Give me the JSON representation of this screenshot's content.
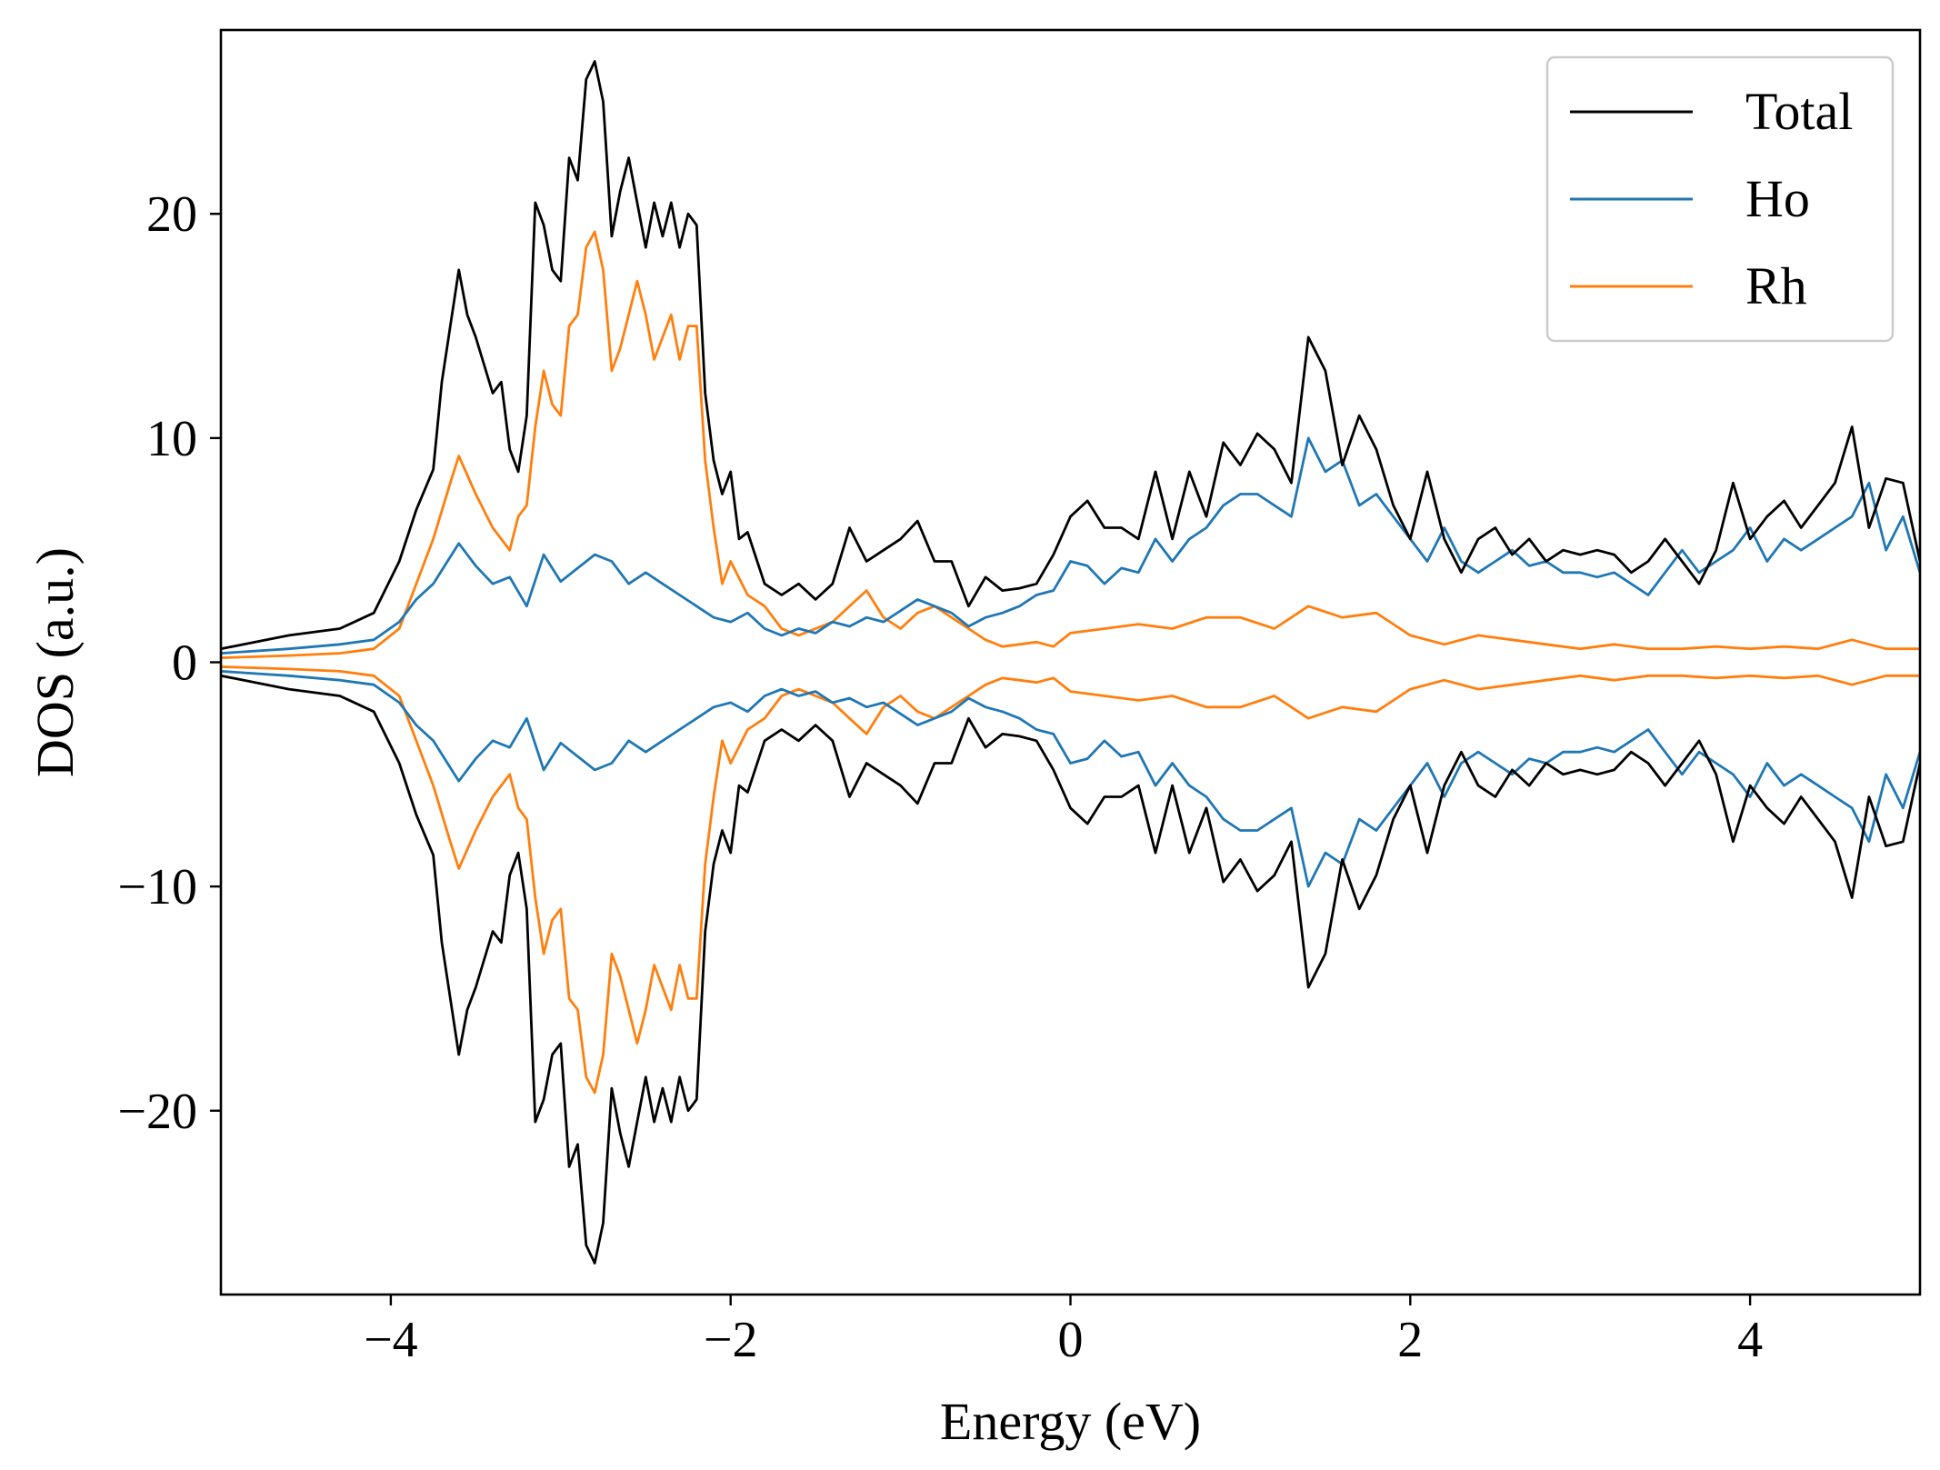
{
  "chart_data": {
    "type": "line",
    "title": "",
    "xlabel": "Energy (eV)",
    "ylabel": "DOS (a.u.)",
    "xlim": [
      -5,
      5
    ],
    "ylim": [
      -28.2,
      28.2
    ],
    "x_ticks": [
      -4,
      -2,
      0,
      2,
      4
    ],
    "x_tick_labels": [
      "−4",
      "−2",
      "0",
      "2",
      "4"
    ],
    "y_ticks": [
      -20,
      -10,
      0,
      10,
      20
    ],
    "y_tick_labels": [
      "−20",
      "−10",
      "0",
      "10",
      "20"
    ],
    "grid": false,
    "legend_position": "top-right",
    "mirrored_spin_down": true,
    "series": [
      {
        "name": "Total",
        "color": "#000000",
        "x": [
          -5.0,
          -4.6,
          -4.3,
          -4.1,
          -3.95,
          -3.85,
          -3.75,
          -3.7,
          -3.6,
          -3.55,
          -3.5,
          -3.4,
          -3.35,
          -3.3,
          -3.25,
          -3.2,
          -3.15,
          -3.1,
          -3.05,
          -3.0,
          -2.95,
          -2.9,
          -2.85,
          -2.8,
          -2.75,
          -2.7,
          -2.65,
          -2.6,
          -2.55,
          -2.5,
          -2.45,
          -2.4,
          -2.35,
          -2.3,
          -2.25,
          -2.2,
          -2.15,
          -2.1,
          -2.05,
          -2.0,
          -1.95,
          -1.9,
          -1.8,
          -1.7,
          -1.6,
          -1.5,
          -1.4,
          -1.3,
          -1.2,
          -1.1,
          -1.0,
          -0.9,
          -0.8,
          -0.7,
          -0.6,
          -0.5,
          -0.4,
          -0.3,
          -0.2,
          -0.1,
          0.0,
          0.1,
          0.2,
          0.3,
          0.4,
          0.5,
          0.6,
          0.7,
          0.8,
          0.9,
          1.0,
          1.1,
          1.2,
          1.3,
          1.4,
          1.5,
          1.6,
          1.7,
          1.8,
          1.9,
          2.0,
          2.1,
          2.2,
          2.3,
          2.4,
          2.5,
          2.6,
          2.7,
          2.8,
          2.9,
          3.0,
          3.1,
          3.2,
          3.3,
          3.4,
          3.5,
          3.6,
          3.7,
          3.8,
          3.9,
          4.0,
          4.1,
          4.2,
          4.3,
          4.4,
          4.5,
          4.6,
          4.7,
          4.8,
          4.9,
          5.0
        ],
        "y": [
          0.6,
          1.2,
          1.5,
          2.2,
          4.5,
          6.8,
          8.6,
          12.5,
          17.5,
          15.5,
          14.5,
          12.0,
          12.5,
          9.5,
          8.5,
          11.0,
          20.5,
          19.5,
          17.5,
          17.0,
          22.5,
          21.5,
          26.0,
          26.8,
          25.0,
          19.0,
          21.0,
          22.5,
          20.5,
          18.5,
          20.5,
          19.0,
          20.5,
          18.5,
          20.0,
          19.5,
          12.0,
          9.0,
          7.5,
          8.5,
          5.5,
          5.8,
          3.5,
          3.0,
          3.5,
          2.8,
          3.5,
          6.0,
          4.5,
          5.0,
          5.5,
          6.3,
          4.5,
          4.5,
          2.5,
          3.8,
          3.2,
          3.3,
          3.5,
          4.8,
          6.5,
          7.2,
          6.0,
          6.0,
          5.5,
          8.5,
          5.5,
          8.5,
          6.5,
          9.8,
          8.8,
          10.2,
          9.5,
          8.0,
          14.5,
          13.0,
          8.8,
          11.0,
          9.5,
          7.0,
          5.5,
          8.5,
          5.5,
          4.0,
          5.5,
          6.0,
          4.8,
          5.5,
          4.5,
          5.0,
          4.8,
          5.0,
          4.8,
          4.0,
          4.5,
          5.5,
          4.5,
          3.5,
          5.0,
          8.0,
          5.5,
          6.5,
          7.2,
          6.0,
          7.0,
          8.0,
          10.5,
          6.0,
          8.2,
          8.0,
          4.5
        ]
      },
      {
        "name": "Ho",
        "color": "#1f77b4",
        "x": [
          -5.0,
          -4.6,
          -4.3,
          -4.1,
          -3.95,
          -3.85,
          -3.75,
          -3.6,
          -3.5,
          -3.4,
          -3.3,
          -3.2,
          -3.1,
          -3.0,
          -2.9,
          -2.8,
          -2.7,
          -2.6,
          -2.5,
          -2.4,
          -2.3,
          -2.2,
          -2.1,
          -2.0,
          -1.9,
          -1.8,
          -1.7,
          -1.6,
          -1.5,
          -1.4,
          -1.3,
          -1.2,
          -1.1,
          -1.0,
          -0.9,
          -0.8,
          -0.7,
          -0.6,
          -0.5,
          -0.4,
          -0.3,
          -0.2,
          -0.1,
          0.0,
          0.1,
          0.2,
          0.3,
          0.4,
          0.5,
          0.6,
          0.7,
          0.8,
          0.9,
          1.0,
          1.1,
          1.2,
          1.3,
          1.4,
          1.5,
          1.6,
          1.7,
          1.8,
          1.9,
          2.0,
          2.1,
          2.2,
          2.3,
          2.4,
          2.5,
          2.6,
          2.7,
          2.8,
          2.9,
          3.0,
          3.1,
          3.2,
          3.3,
          3.4,
          3.5,
          3.6,
          3.7,
          3.8,
          3.9,
          4.0,
          4.1,
          4.2,
          4.3,
          4.4,
          4.5,
          4.6,
          4.7,
          4.8,
          4.9,
          5.0
        ],
        "y": [
          0.4,
          0.6,
          0.8,
          1.0,
          1.8,
          2.8,
          3.5,
          5.3,
          4.3,
          3.5,
          3.8,
          2.5,
          4.8,
          3.6,
          4.2,
          4.8,
          4.5,
          3.5,
          4.0,
          3.5,
          3.0,
          2.5,
          2.0,
          1.8,
          2.2,
          1.5,
          1.2,
          1.5,
          1.3,
          1.8,
          1.6,
          2.0,
          1.8,
          2.3,
          2.8,
          2.5,
          2.2,
          1.6,
          2.0,
          2.2,
          2.5,
          3.0,
          3.2,
          4.5,
          4.3,
          3.5,
          4.2,
          4.0,
          5.5,
          4.5,
          5.5,
          6.0,
          7.0,
          7.5,
          7.5,
          7.0,
          6.5,
          10.0,
          8.5,
          9.0,
          7.0,
          7.5,
          6.5,
          5.5,
          4.5,
          6.0,
          4.5,
          4.0,
          4.5,
          5.0,
          4.3,
          4.5,
          4.0,
          4.0,
          3.8,
          4.0,
          3.5,
          3.0,
          4.0,
          5.0,
          4.0,
          4.5,
          5.0,
          6.0,
          4.5,
          5.5,
          5.0,
          5.5,
          6.0,
          6.5,
          8.0,
          5.0,
          6.5,
          4.0
        ]
      },
      {
        "name": "Rh",
        "color": "#ff7f0e",
        "x": [
          -5.0,
          -4.6,
          -4.3,
          -4.1,
          -3.95,
          -3.85,
          -3.75,
          -3.65,
          -3.6,
          -3.5,
          -3.4,
          -3.3,
          -3.25,
          -3.2,
          -3.15,
          -3.1,
          -3.05,
          -3.0,
          -2.95,
          -2.9,
          -2.85,
          -2.8,
          -2.75,
          -2.7,
          -2.65,
          -2.6,
          -2.55,
          -2.5,
          -2.45,
          -2.4,
          -2.35,
          -2.3,
          -2.25,
          -2.2,
          -2.15,
          -2.1,
          -2.05,
          -2.0,
          -1.9,
          -1.8,
          -1.7,
          -1.6,
          -1.5,
          -1.4,
          -1.3,
          -1.2,
          -1.1,
          -1.0,
          -0.9,
          -0.8,
          -0.7,
          -0.6,
          -0.5,
          -0.4,
          -0.3,
          -0.2,
          -0.1,
          0.0,
          0.2,
          0.4,
          0.6,
          0.8,
          1.0,
          1.2,
          1.4,
          1.6,
          1.8,
          2.0,
          2.2,
          2.4,
          2.6,
          2.8,
          3.0,
          3.2,
          3.4,
          3.6,
          3.8,
          4.0,
          4.2,
          4.4,
          4.6,
          4.8,
          5.0
        ],
        "y": [
          0.2,
          0.3,
          0.4,
          0.6,
          1.5,
          3.5,
          5.5,
          8.0,
          9.2,
          7.5,
          6.0,
          5.0,
          6.5,
          7.0,
          10.5,
          13.0,
          11.5,
          11.0,
          15.0,
          15.5,
          18.5,
          19.2,
          17.5,
          13.0,
          14.0,
          15.5,
          17.0,
          15.5,
          13.5,
          14.5,
          15.5,
          13.5,
          15.0,
          15.0,
          9.0,
          6.0,
          3.5,
          4.5,
          3.0,
          2.5,
          1.5,
          1.2,
          1.5,
          1.8,
          2.5,
          3.2,
          2.0,
          1.5,
          2.2,
          2.5,
          2.0,
          1.5,
          1.0,
          0.7,
          0.8,
          0.9,
          0.7,
          1.3,
          1.5,
          1.7,
          1.5,
          2.0,
          2.0,
          1.5,
          2.5,
          2.0,
          2.2,
          1.2,
          0.8,
          1.2,
          1.0,
          0.8,
          0.6,
          0.8,
          0.6,
          0.6,
          0.7,
          0.6,
          0.7,
          0.6,
          1.0,
          0.6,
          0.6
        ]
      }
    ]
  }
}
